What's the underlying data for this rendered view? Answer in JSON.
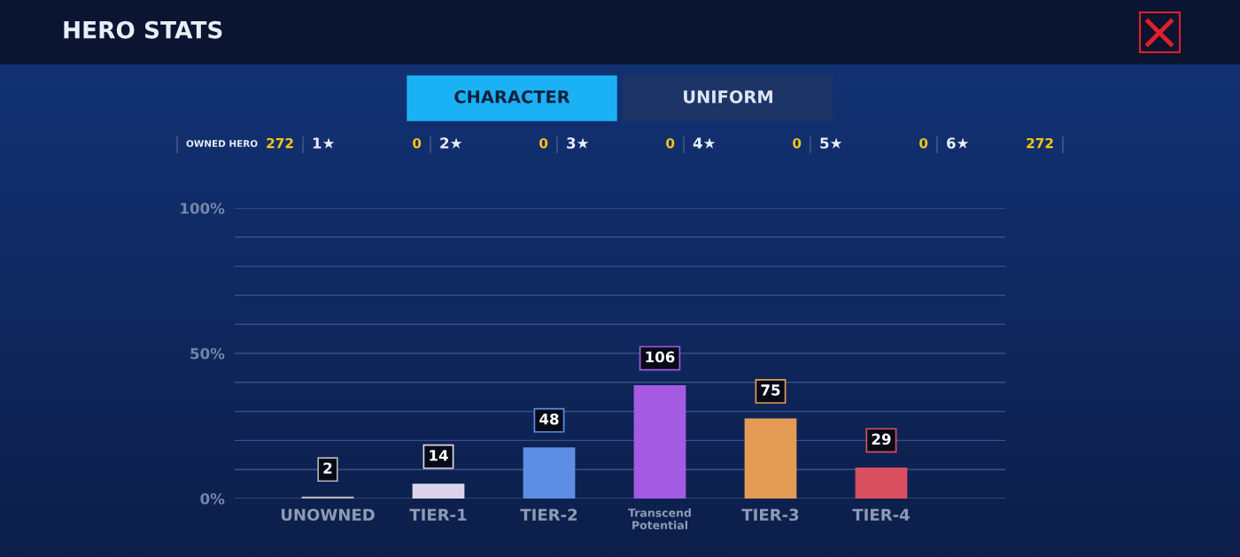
{
  "chart_data": {
    "type": "bar",
    "title": "HERO STATS",
    "categories": [
      "UNOWNED",
      "TIER-1",
      "TIER-2",
      "Transcend\nPotential",
      "TIER-3",
      "TIER-4"
    ],
    "values": [
      0.7,
      5.1,
      17.6,
      39,
      27.6,
      10.7
    ],
    "colors": [
      "#b4b4b8",
      "#dcd3ea",
      "#5e8de6",
      "#a45ae3",
      "#e39b55",
      "#d94f60"
    ],
    "ylim": [
      0,
      100
    ],
    "yticks": [
      {
        "value": 0,
        "label": "0%"
      },
      {
        "value": 10,
        "label": null
      },
      {
        "value": 20,
        "label": null
      },
      {
        "value": 30,
        "label": null
      },
      {
        "value": 40,
        "label": null
      },
      {
        "value": 50,
        "label": "50%"
      },
      {
        "value": 60,
        "label": null
      },
      {
        "value": 70,
        "label": null
      },
      {
        "value": 80,
        "label": null
      },
      {
        "value": 90,
        "label": null
      },
      {
        "value": 100,
        "label": "100%"
      }
    ],
    "grid": "y",
    "legend": false,
    "annotations": [
      "CHARACTER",
      "UNIFORM",
      "OWNED HERO",
      "272",
      "1★",
      "0",
      "2★",
      "0",
      "3★",
      "0",
      "4★",
      "0",
      "5★",
      "0",
      "6★",
      "272",
      {
        "text": "2",
        "x": "UNOWNED",
        "y": 0.7
      },
      {
        "text": "14",
        "x": "TIER-1",
        "y": 5.1
      },
      {
        "text": "48",
        "x": "TIER-2",
        "y": 17.6
      },
      {
        "text": "106",
        "x": "Transcend\nPotential",
        "y": 39
      },
      {
        "text": "75",
        "x": "TIER-3",
        "y": 27.6
      },
      {
        "text": "29",
        "x": "TIER-4",
        "y": 10.7
      }
    ]
  }
}
